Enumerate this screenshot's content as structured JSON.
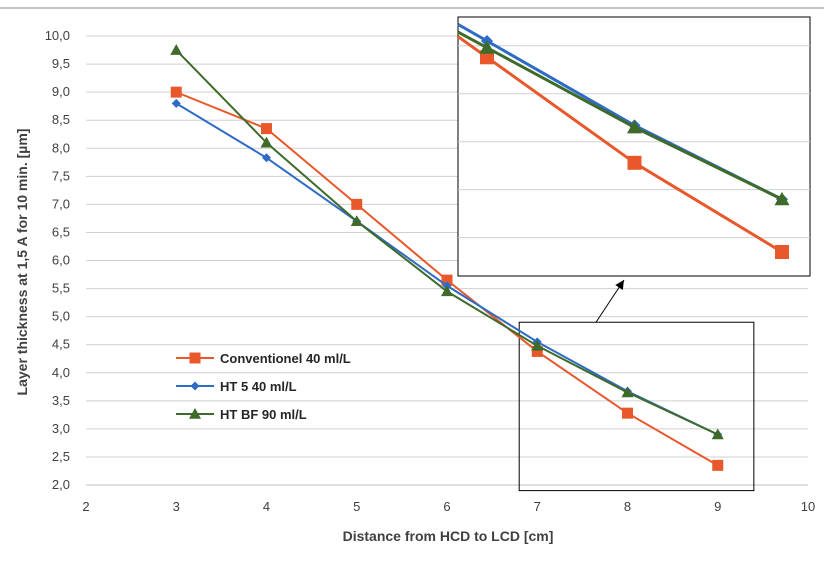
{
  "chart_data": {
    "type": "line",
    "xlabel": "Distance from HCD to LCD [cm]",
    "ylabel": "Layer thickness at 1,5 A for 10 min. [µm]",
    "xlim": [
      2,
      10
    ],
    "ylim": [
      2.0,
      10.0
    ],
    "x_ticks": [
      "2",
      "3",
      "4",
      "5",
      "6",
      "7",
      "8",
      "9",
      "10"
    ],
    "y_ticks": [
      "2,0",
      "2,5",
      "3,0",
      "3,5",
      "4,0",
      "4,5",
      "5,0",
      "5,5",
      "6,0",
      "6,5",
      "7,0",
      "7,5",
      "8,0",
      "8,5",
      "9,0",
      "9,5",
      "10,0"
    ],
    "grid": true,
    "legend_position": "left-center",
    "series": [
      {
        "name": "Conventionel 40 ml/L",
        "color": "#e8582a",
        "marker": "square",
        "x": [
          3,
          4,
          5,
          6,
          7,
          8,
          9
        ],
        "y": [
          9.0,
          8.35,
          7.0,
          5.65,
          4.38,
          3.28,
          2.35
        ]
      },
      {
        "name": "HT 5 40 ml/L",
        "color": "#2e6bc4",
        "marker": "diamond",
        "x": [
          3,
          4,
          5,
          6,
          7,
          8,
          9
        ],
        "y": [
          8.8,
          7.83,
          6.7,
          5.55,
          4.55,
          3.67,
          2.9
        ]
      },
      {
        "name": "HT BF 90 ml/L",
        "color": "#3f6b2a",
        "marker": "triangle",
        "x": [
          3,
          4,
          5,
          6,
          7,
          8,
          9
        ],
        "y": [
          9.75,
          8.1,
          6.7,
          5.45,
          4.48,
          3.65,
          2.9
        ]
      }
    ],
    "zoom_box": {
      "x_range": [
        6.8,
        9.4
      ],
      "y_range": [
        1.9,
        4.9
      ]
    },
    "inset_x": [
      7,
      8,
      9
    ],
    "inset_y_range": [
      2.1,
      4.8
    ]
  }
}
